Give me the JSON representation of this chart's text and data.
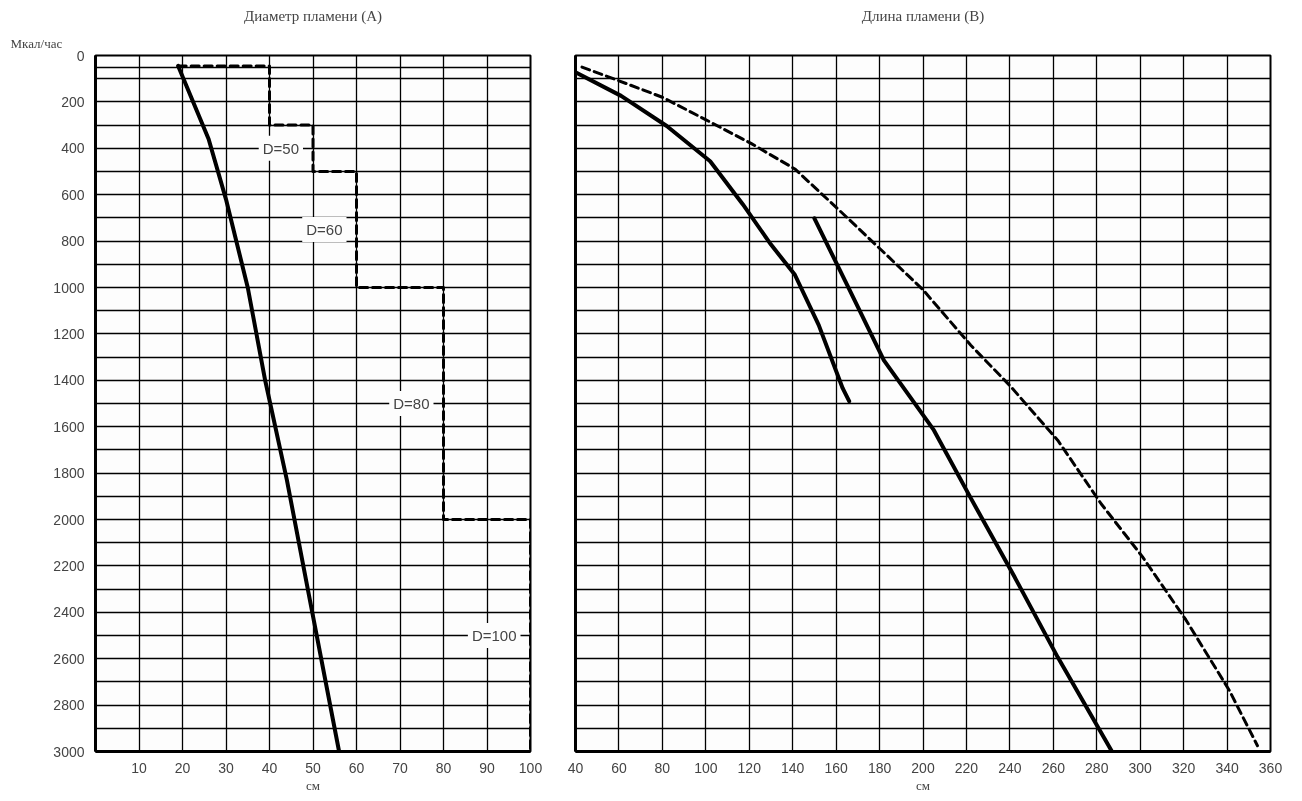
{
  "chart_data": [
    {
      "type": "line",
      "title": "Диаметр пламени (А)",
      "ylabel": "Мкал/час",
      "xlabel": "см",
      "xlim": [
        0,
        100
      ],
      "xticks": [
        10,
        20,
        30,
        40,
        50,
        60,
        70,
        80,
        90,
        100
      ],
      "ylim": [
        3000,
        0
      ],
      "yticks": [
        0,
        {
          "value": 50,
          "label": null
        },
        {
          "value": 100,
          "label": null
        },
        200,
        {
          "value": 300,
          "label": null
        },
        400,
        {
          "value": 500,
          "label": null
        },
        600,
        {
          "value": 700,
          "label": null
        },
        800,
        {
          "value": 900,
          "label": null
        },
        1000,
        {
          "value": 1100,
          "label": null
        },
        1200,
        {
          "value": 1300,
          "label": null
        },
        1400,
        {
          "value": 1500,
          "label": null
        },
        1600,
        {
          "value": 1700,
          "label": null
        },
        1800,
        {
          "value": 1900,
          "label": null
        },
        2000,
        {
          "value": 2100,
          "label": null
        },
        2200,
        {
          "value": 2300,
          "label": null
        },
        2400,
        {
          "value": 2500,
          "label": null
        },
        2600,
        {
          "value": 2700,
          "label": null
        },
        2800,
        {
          "value": 2900,
          "label": null
        },
        3000
      ],
      "grid": true,
      "series": [
        {
          "color": "#000000",
          "line_style": "solid",
          "x": [
            19,
            26,
            30,
            35,
            39,
            44,
            49,
            56
          ],
          "values": [
            45,
            360,
            620,
            1000,
            1400,
            1830,
            2320,
            3000
          ]
        },
        {
          "color": "#000000",
          "line_style": "dashed",
          "x": [
            19,
            40,
            40,
            50,
            50,
            60,
            60,
            80,
            80,
            100,
            100
          ],
          "values": [
            45,
            45,
            300,
            300,
            500,
            500,
            1000,
            1000,
            2000,
            2000,
            3000
          ]
        }
      ],
      "annotations": [
        "D=50",
        "D=60",
        "D=80",
        "D=100"
      ]
    },
    {
      "type": "line",
      "title": "Длина пламени (В)",
      "xlabel": "см",
      "xlim": [
        40,
        360
      ],
      "xticks": [
        40,
        60,
        80,
        100,
        120,
        140,
        160,
        180,
        200,
        220,
        240,
        260,
        280,
        300,
        320,
        340,
        360
      ],
      "ylim": [
        3000,
        0
      ],
      "yticks": [
        0,
        100,
        200,
        300,
        400,
        500,
        600,
        700,
        800,
        900,
        1000,
        1100,
        1200,
        1300,
        1400,
        1500,
        1600,
        1700,
        1800,
        1900,
        2000,
        2100,
        2200,
        2300,
        2400,
        2500,
        2600,
        2700,
        2800,
        2900,
        3000
      ],
      "tick_labels": "x",
      "grid": true,
      "series": [
        {
          "color": "#000000",
          "line_style": "solid",
          "x": [
            40,
            61,
            82,
            102,
            117,
            130,
            141,
            152,
            163,
            166
          ],
          "values": [
            72,
            174,
            304,
            456,
            641,
            815,
            945,
            1162,
            1434,
            1490
          ]
        },
        {
          "color": "#000000",
          "line_style": "solid",
          "x": [
            150,
            165,
            182,
            205,
            222,
            242,
            262,
            287
          ],
          "values": [
            702,
            988,
            1314,
            1615,
            1908,
            2245,
            2593,
            3000
          ]
        },
        {
          "color": "#000000",
          "line_style": "dashed",
          "x": [
            43,
            60,
            80,
            99,
            121,
            141,
            161,
            183,
            200,
            222,
            240,
            262,
            282,
            301,
            321,
            341,
            354
          ],
          "values": [
            50,
            109,
            180,
            272,
            380,
            489,
            663,
            858,
            1010,
            1249,
            1423,
            1658,
            1932,
            2160,
            2432,
            2736,
            2975
          ]
        }
      ]
    }
  ]
}
